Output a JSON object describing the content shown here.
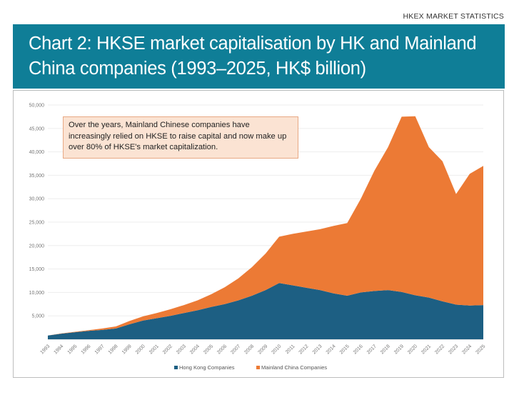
{
  "header": {
    "top_label": "HKEX MARKET STATISTICS",
    "title": "Chart 2: HKSE market capitalisation by HK and Mainland China companies (1993–2025, HK$ billion)"
  },
  "chart_data": {
    "type": "area",
    "stacked": true,
    "annotation": "Over the years, Mainland Chinese companies have increasingly relied on HKSE to raise capital and now make up over 80% of HKSE's market capitalization.",
    "ylim": [
      0,
      50000
    ],
    "y_ticks": [
      0,
      5000,
      10000,
      15000,
      20000,
      25000,
      30000,
      35000,
      40000,
      45000,
      50000
    ],
    "y_tick_labels": [
      "",
      "5,000",
      "10,000",
      "15,000",
      "20,000",
      "25,000",
      "30,000",
      "35,000",
      "40,000",
      "45,000",
      "50,000"
    ],
    "grid": true,
    "legend_position": "bottom",
    "x": [
      "1993",
      "1994",
      "1995",
      "1996",
      "1997",
      "1998",
      "1999",
      "2000",
      "2001",
      "2002",
      "2003",
      "2004",
      "2005",
      "2006",
      "2007",
      "2008",
      "2009",
      "2010",
      "2011",
      "2012",
      "2013",
      "2014",
      "2015",
      "2016",
      "2017",
      "2018",
      "2019",
      "2020",
      "2021",
      "2022",
      "2023",
      "2024",
      "2025"
    ],
    "series": [
      {
        "name": "Hong Kong Companies",
        "color": "#1d5f83",
        "values": [
          800,
          1200,
          1500,
          1800,
          2000,
          2300,
          3200,
          4000,
          4500,
          5000,
          5600,
          6200,
          6900,
          7500,
          8300,
          9300,
          10500,
          12000,
          11500,
          11000,
          10500,
          9800,
          9300,
          10000,
          10300,
          10500,
          10100,
          9400,
          8900,
          8100,
          7400,
          7200,
          7300
        ]
      },
      {
        "name": "Mainland China Companies",
        "color": "#ec7a35",
        "values": [
          0,
          50,
          100,
          150,
          300,
          450,
          700,
          900,
          1100,
          1400,
          1700,
          2100,
          2700,
          3600,
          4700,
          6100,
          7800,
          9900,
          11000,
          12000,
          13000,
          14400,
          15500,
          20000,
          25700,
          30500,
          37400,
          38200,
          32100,
          29900,
          23600,
          28100,
          29700
        ]
      }
    ]
  }
}
